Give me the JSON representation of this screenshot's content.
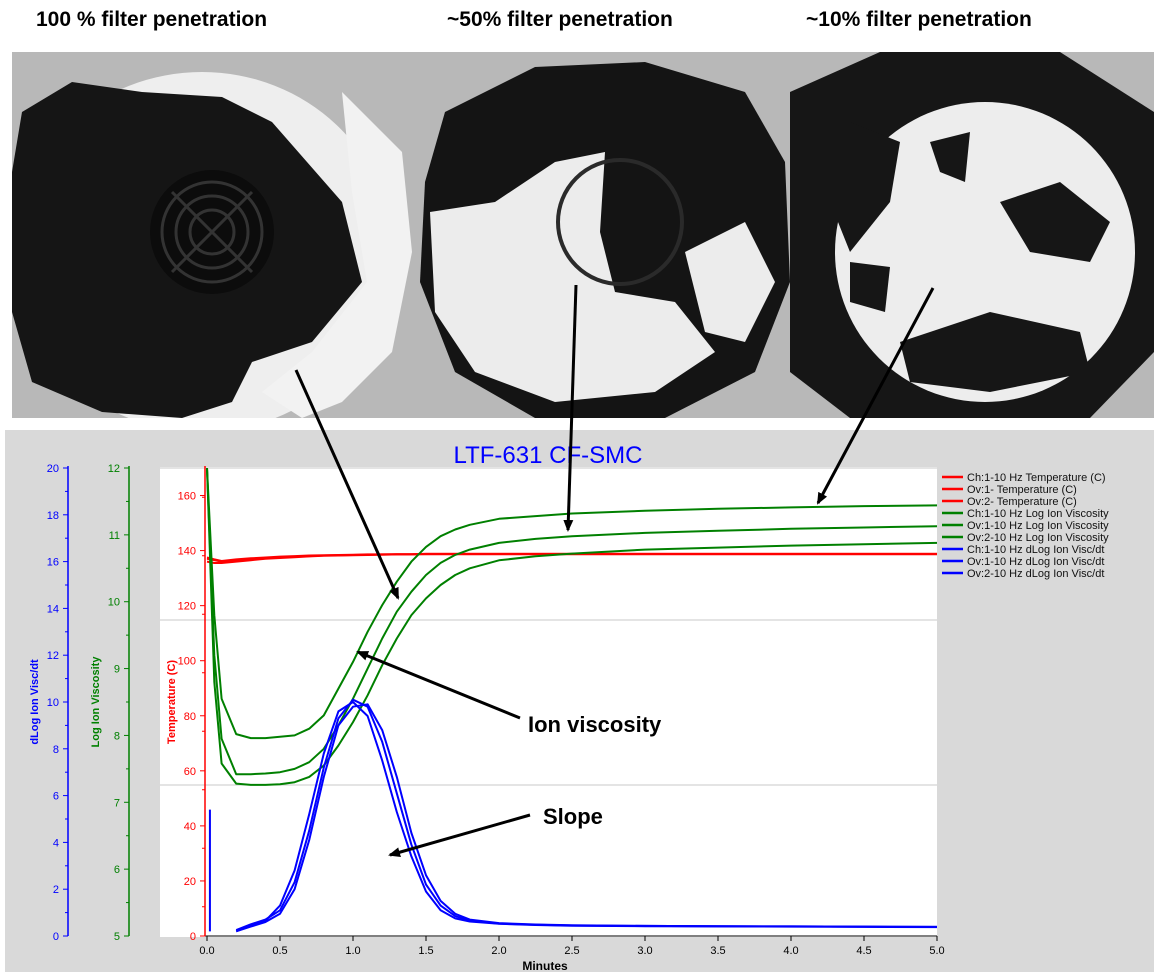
{
  "photos": [
    {
      "title": "100 % filter penetration"
    },
    {
      "title": "~50% filter penetration"
    },
    {
      "title": "~10% filter penetration"
    }
  ],
  "annotations": {
    "ion_viscosity": "Ion viscosity",
    "slope": "Slope"
  },
  "colors": {
    "temperature": "#ff0000",
    "ion_viscosity": "#008000",
    "slope": "#0000ff",
    "title": "#0000ff",
    "panel": "#d9d9d9"
  },
  "chart_data": {
    "type": "line",
    "title": "LTF-631 CF-SMC",
    "xlabel": "Minutes",
    "xlim": [
      0,
      5.0
    ],
    "x_ticks": [
      "0.0",
      "0.5",
      "1.0",
      "1.5",
      "2.0",
      "2.5",
      "3.0",
      "3.5",
      "4.0",
      "4.5",
      "5.0"
    ],
    "axes": {
      "dlog": {
        "label": "dLog Ion Visc/dt",
        "color": "#0000ff",
        "min": 0,
        "max": 20,
        "ticks": [
          "0",
          "2",
          "4",
          "6",
          "8",
          "10",
          "12",
          "14",
          "16",
          "18",
          "20"
        ]
      },
      "logvisc": {
        "label": "Log Ion Viscosity",
        "color": "#008000",
        "min": 5,
        "max": 12,
        "ticks": [
          "5",
          "6",
          "7",
          "8",
          "9",
          "10",
          "11",
          "12"
        ]
      },
      "temp": {
        "label": "Temperature (C)",
        "color": "#ff0000",
        "min": 0,
        "max": 170,
        "ticks": [
          "0",
          "20",
          "40",
          "60",
          "80",
          "100",
          "120",
          "140",
          "160"
        ]
      }
    },
    "x": [
      0.0,
      0.05,
      0.1,
      0.2,
      0.3,
      0.4,
      0.5,
      0.6,
      0.7,
      0.8,
      0.9,
      1.0,
      1.1,
      1.2,
      1.3,
      1.4,
      1.5,
      1.6,
      1.7,
      1.8,
      2.0,
      2.25,
      2.5,
      3.0,
      3.5,
      4.0,
      4.5,
      5.0
    ],
    "series": [
      {
        "name": "Ch:1-10 Hz Temperature (C)",
        "axis": "temp",
        "color": "#ff0000",
        "values": [
          137,
          136.5,
          136,
          136.5,
          137,
          137.2,
          137.5,
          137.8,
          138,
          138.2,
          138.3,
          138.4,
          138.5,
          138.6,
          138.7,
          138.7,
          138.8,
          138.8,
          138.8,
          138.8,
          138.8,
          138.8,
          138.8,
          138.8,
          138.8,
          138.8,
          138.8,
          138.8
        ]
      },
      {
        "name": "Ov:1- Temperature (C)",
        "axis": "temp",
        "color": "#ff0000",
        "values": [
          136,
          135.5,
          135.5,
          136,
          136.5,
          137,
          137.3,
          137.6,
          137.9,
          138.1,
          138.2,
          138.3,
          138.4,
          138.5,
          138.6,
          138.6,
          138.7,
          138.7,
          138.7,
          138.7,
          138.7,
          138.7,
          138.7,
          138.7,
          138.7,
          138.7,
          138.7,
          138.7
        ]
      },
      {
        "name": "Ov:2- Temperature (C)",
        "axis": "temp",
        "color": "#ff0000",
        "values": [
          137.5,
          136.8,
          136.2,
          136.8,
          137.2,
          137.5,
          137.8,
          138,
          138.2,
          138.3,
          138.4,
          138.5,
          138.6,
          138.6,
          138.7,
          138.7,
          138.8,
          138.8,
          138.8,
          138.8,
          138.8,
          138.8,
          138.8,
          138.8,
          138.8,
          138.8,
          138.8,
          138.8
        ]
      },
      {
        "name": "Ch:1-10 Hz Log Ion Viscosity",
        "axis": "logvisc",
        "color": "#008000",
        "values": [
          12.5,
          9.8,
          8.55,
          8.02,
          7.96,
          7.96,
          7.98,
          8.0,
          8.1,
          8.3,
          8.7,
          9.1,
          9.55,
          9.95,
          10.3,
          10.6,
          10.82,
          10.98,
          11.08,
          11.15,
          11.24,
          11.28,
          11.32,
          11.36,
          11.39,
          11.41,
          11.43,
          11.44
        ]
      },
      {
        "name": "Ov:1-10 Hz Log Ion Viscosity",
        "axis": "logvisc",
        "color": "#008000",
        "values": [
          12.3,
          9.2,
          7.95,
          7.42,
          7.42,
          7.43,
          7.45,
          7.5,
          7.6,
          7.8,
          8.15,
          8.55,
          9.0,
          9.45,
          9.85,
          10.15,
          10.4,
          10.58,
          10.7,
          10.78,
          10.88,
          10.94,
          10.98,
          11.03,
          11.06,
          11.09,
          11.11,
          11.13
        ]
      },
      {
        "name": "Ov:2-10 Hz Log Ion Viscosity",
        "axis": "logvisc",
        "color": "#008000",
        "values": [
          12.2,
          8.8,
          7.58,
          7.28,
          7.26,
          7.26,
          7.27,
          7.3,
          7.38,
          7.55,
          7.85,
          8.2,
          8.6,
          9.05,
          9.45,
          9.8,
          10.05,
          10.25,
          10.4,
          10.5,
          10.62,
          10.68,
          10.72,
          10.78,
          10.81,
          10.84,
          10.86,
          10.88
        ]
      },
      {
        "name": "Ch:1-10 Hz dLog Ion Visc/dt",
        "axis": "dlog",
        "color": "#0000ff",
        "values": [
          null,
          null,
          null,
          0.2,
          0.45,
          0.65,
          1.3,
          2.8,
          5.2,
          7.8,
          9.6,
          10.0,
          9.4,
          7.5,
          5.3,
          3.4,
          1.9,
          1.1,
          0.75,
          0.62,
          0.52,
          0.47,
          0.44,
          0.42,
          0.41,
          0.4,
          0.39,
          0.38
        ]
      },
      {
        "name": "Ov:1-10 Hz dLog Ion Visc/dt",
        "axis": "dlog",
        "color": "#0000ff",
        "values": [
          null,
          null,
          null,
          0.25,
          0.5,
          0.7,
          1.1,
          2.3,
          4.5,
          7.2,
          9.3,
          10.1,
          9.8,
          8.3,
          6.1,
          3.9,
          2.2,
          1.3,
          0.85,
          0.65,
          0.53,
          0.48,
          0.45,
          0.43,
          0.42,
          0.41,
          0.4,
          0.39
        ]
      },
      {
        "name": "Ov:2-10 Hz dLog Ion Visc/dt",
        "axis": "dlog",
        "color": "#0000ff",
        "values": [
          null,
          null,
          null,
          0.2,
          0.4,
          0.6,
          0.95,
          2.0,
          4.1,
          6.8,
          9.0,
          9.8,
          9.9,
          8.8,
          6.8,
          4.4,
          2.6,
          1.5,
          0.95,
          0.7,
          0.55,
          0.49,
          0.46,
          0.43,
          0.42,
          0.41,
          0.4,
          0.39
        ]
      }
    ]
  }
}
